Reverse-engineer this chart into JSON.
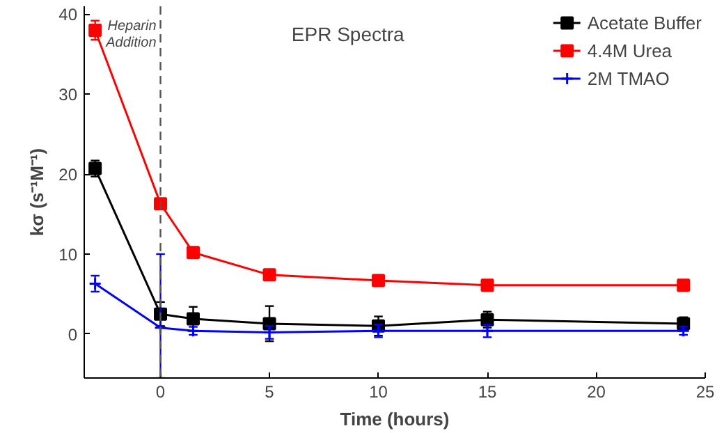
{
  "chart_data": {
    "type": "line",
    "xlabel": "Time (hours)",
    "ylabel": "kσ (s⁻¹M⁻¹)",
    "annotations": [
      "EPR Spectra"
    ],
    "xlim": [
      -3.5,
      25
    ],
    "xticks": [
      0,
      5,
      10,
      15,
      20,
      25
    ],
    "ylim": [
      -5.5,
      41
    ],
    "yticks": [
      0,
      10,
      20,
      30,
      40
    ],
    "grid": false,
    "legend": "top right",
    "line_style": "solid",
    "ref_lines": [
      {
        "axis": "x",
        "value": 0,
        "label": "Heparin Addition",
        "color": "#555555",
        "line_style": "dashed"
      }
    ],
    "series": [
      {
        "name": "Acetate Buffer",
        "color": "#000000",
        "marker": "square",
        "x": [
          -3,
          0,
          1.5,
          5,
          10,
          15,
          24
        ],
        "values": [
          20.7,
          2.5,
          1.9,
          1.3,
          1.0,
          1.8,
          1.3
        ],
        "errors": [
          1,
          1.5,
          1.5,
          2.2,
          1.2,
          1,
          0.8
        ]
      },
      {
        "name": "4.4M Urea",
        "color": "#ff0000",
        "marker": "square",
        "x": [
          -3,
          0,
          1.5,
          5,
          10,
          15,
          24
        ],
        "values": [
          38,
          16.3,
          10.2,
          7.4,
          6.7,
          6.1,
          6.1
        ],
        "errors": [
          1.2,
          0.5,
          0.6,
          0.4,
          0.6,
          0.5,
          0.4
        ]
      },
      {
        "name": "2M TMAO",
        "color": "#0000ff",
        "marker": "cross",
        "x": [
          -3,
          0,
          1.5,
          5,
          10,
          15,
          24
        ],
        "values": [
          6.3,
          0.8,
          0.4,
          0.2,
          0.4,
          0.4,
          0.4
        ],
        "errors": [
          1,
          [
            -5.5,
            10
          ],
          0.5,
          0.8,
          0.8,
          0.8,
          0.5
        ]
      }
    ]
  }
}
